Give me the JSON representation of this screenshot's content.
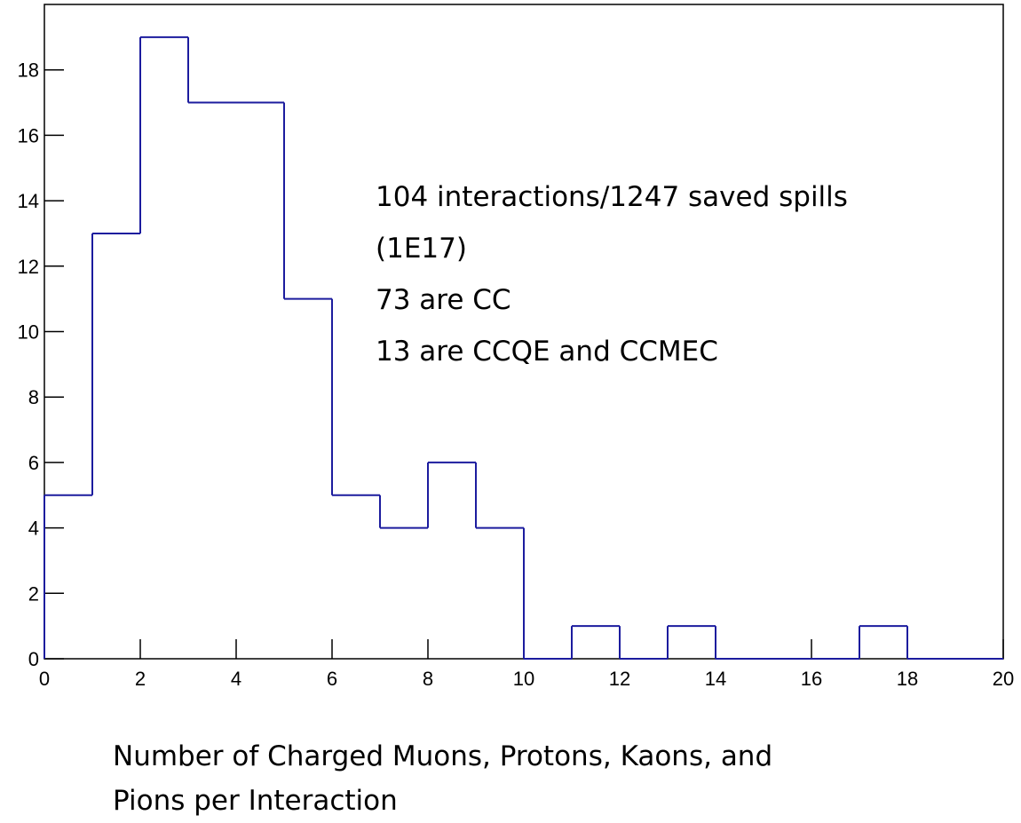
{
  "chart_data": {
    "type": "histogram",
    "bins": [
      0,
      1,
      2,
      3,
      4,
      5,
      6,
      7,
      8,
      9,
      10,
      11,
      12,
      13,
      14,
      15,
      16,
      17,
      18,
      19,
      20
    ],
    "values": [
      5,
      13,
      19,
      17,
      17,
      11,
      5,
      4,
      6,
      4,
      0,
      1,
      0,
      1,
      0,
      0,
      0,
      1,
      0,
      0
    ],
    "color": "#1c1c9e",
    "xlim": [
      0,
      20
    ],
    "xticks": [
      0,
      2,
      4,
      6,
      8,
      10,
      12,
      14,
      16,
      18,
      20
    ],
    "ylim": [
      0,
      20
    ],
    "yticks": [
      0,
      2,
      4,
      6,
      8,
      10,
      12,
      14,
      16,
      18
    ],
    "annotations": [
      "104 interactions/1247 saved spills",
      "(1E17)",
      "73 are CC",
      "13 are CCQE and CCMEC"
    ],
    "xlabel": [
      "Number of Charged Muons, Protons, Kaons, and",
      "Pions per Interaction"
    ]
  }
}
